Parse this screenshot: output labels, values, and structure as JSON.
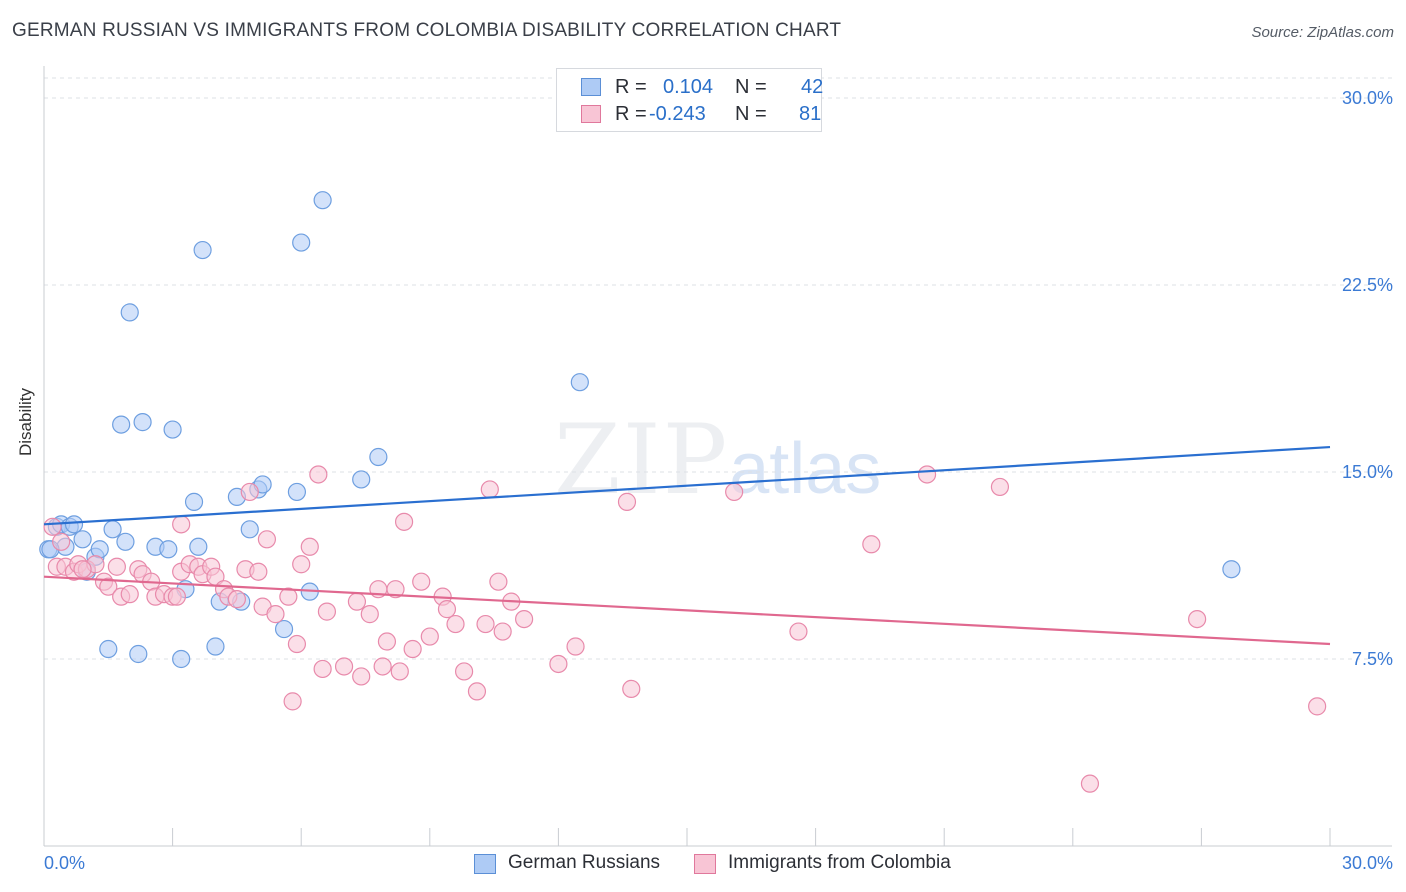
{
  "title": "GERMAN RUSSIAN VS IMMIGRANTS FROM COLOMBIA DISABILITY CORRELATION CHART",
  "source": "Source: ZipAtlas.com",
  "watermark": {
    "zip": "ZIP",
    "atlas": "atlas"
  },
  "legend": {
    "rows": [
      {
        "r_label": "R =",
        "r_value": "0.104",
        "n_label": "N =",
        "n_value": "42",
        "color": "#aecbf5",
        "border": "#5b8fd6"
      },
      {
        "r_label": "R =",
        "r_value": "-0.243",
        "n_label": "N =",
        "n_value": "81",
        "color": "#f8c5d5",
        "border": "#e0789c"
      }
    ]
  },
  "bottom_legend": [
    {
      "label": "German Russians",
      "color": "#aecbf5",
      "border": "#5b8fd6"
    },
    {
      "label": "Immigrants from Colombia",
      "color": "#f8c5d5",
      "border": "#e0789c"
    }
  ],
  "chart_data": {
    "type": "scatter",
    "title": "GERMAN RUSSIAN VS IMMIGRANTS FROM COLOMBIA DISABILITY CORRELATION CHART",
    "xlabel": "",
    "ylabel": "Disability",
    "xlim": [
      0,
      30
    ],
    "ylim": [
      0,
      30.8
    ],
    "x_tick_labels": [
      "0.0%",
      "30.0%"
    ],
    "y_ticks": [
      7.5,
      15.0,
      22.5,
      30.0
    ],
    "y_tick_labels": [
      "7.5%",
      "15.0%",
      "22.5%",
      "30.0%"
    ],
    "grid": true,
    "series": [
      {
        "name": "German Russians",
        "color": "#6e9fe0",
        "fill": "#aecbf5",
        "line_color": "#2a6fd0",
        "trend": {
          "x": [
            0,
            30
          ],
          "y": [
            12.9,
            16.0
          ]
        },
        "points": [
          [
            0.1,
            11.9
          ],
          [
            0.3,
            12.8
          ],
          [
            0.4,
            12.9
          ],
          [
            0.5,
            12.0
          ],
          [
            0.6,
            12.8
          ],
          [
            0.7,
            12.9
          ],
          [
            0.9,
            12.3
          ],
          [
            1.0,
            11.0
          ],
          [
            1.2,
            11.6
          ],
          [
            1.3,
            11.9
          ],
          [
            1.5,
            7.9
          ],
          [
            1.6,
            12.7
          ],
          [
            1.8,
            16.9
          ],
          [
            1.9,
            12.2
          ],
          [
            2.0,
            21.4
          ],
          [
            2.2,
            7.7
          ],
          [
            2.3,
            17.0
          ],
          [
            2.6,
            12.0
          ],
          [
            2.9,
            11.9
          ],
          [
            3.0,
            16.7
          ],
          [
            3.2,
            7.5
          ],
          [
            3.3,
            10.3
          ],
          [
            3.5,
            13.8
          ],
          [
            3.6,
            12.0
          ],
          [
            3.7,
            23.9
          ],
          [
            4.0,
            8.0
          ],
          [
            4.1,
            9.8
          ],
          [
            4.5,
            14.0
          ],
          [
            4.6,
            9.8
          ],
          [
            4.8,
            12.7
          ],
          [
            5.0,
            14.3
          ],
          [
            5.1,
            14.5
          ],
          [
            5.6,
            8.7
          ],
          [
            5.9,
            14.2
          ],
          [
            6.0,
            24.2
          ],
          [
            6.2,
            10.2
          ],
          [
            6.5,
            25.9
          ],
          [
            7.4,
            14.7
          ],
          [
            7.8,
            15.6
          ],
          [
            12.5,
            18.6
          ],
          [
            27.7,
            11.1
          ],
          [
            0.15,
            11.9
          ]
        ]
      },
      {
        "name": "Immigrants from Colombia",
        "color": "#e88aab",
        "fill": "#f8c5d5",
        "line_color": "#e0688f",
        "trend": {
          "x": [
            0,
            30
          ],
          "y": [
            10.8,
            8.1
          ]
        },
        "points": [
          [
            0.2,
            12.8
          ],
          [
            0.3,
            11.2
          ],
          [
            0.4,
            12.2
          ],
          [
            0.5,
            11.2
          ],
          [
            0.7,
            11.0
          ],
          [
            0.8,
            11.3
          ],
          [
            1.0,
            11.1
          ],
          [
            1.2,
            11.3
          ],
          [
            1.4,
            10.6
          ],
          [
            1.5,
            10.4
          ],
          [
            1.7,
            11.2
          ],
          [
            1.8,
            10.0
          ],
          [
            2.0,
            10.1
          ],
          [
            2.2,
            11.1
          ],
          [
            2.3,
            10.9
          ],
          [
            2.5,
            10.6
          ],
          [
            2.6,
            10.0
          ],
          [
            2.8,
            10.1
          ],
          [
            3.0,
            10.0
          ],
          [
            3.2,
            11.0
          ],
          [
            3.2,
            12.9
          ],
          [
            3.4,
            11.3
          ],
          [
            3.6,
            11.2
          ],
          [
            3.7,
            10.9
          ],
          [
            3.9,
            11.2
          ],
          [
            4.0,
            10.8
          ],
          [
            4.2,
            10.3
          ],
          [
            4.3,
            10.0
          ],
          [
            4.5,
            9.9
          ],
          [
            4.7,
            11.1
          ],
          [
            4.8,
            14.2
          ],
          [
            5.0,
            11.0
          ],
          [
            5.1,
            9.6
          ],
          [
            5.2,
            12.3
          ],
          [
            5.4,
            9.3
          ],
          [
            5.7,
            10.0
          ],
          [
            5.8,
            5.8
          ],
          [
            5.9,
            8.1
          ],
          [
            6.0,
            11.3
          ],
          [
            6.2,
            12.0
          ],
          [
            6.4,
            14.9
          ],
          [
            6.5,
            7.1
          ],
          [
            6.6,
            9.4
          ],
          [
            7.0,
            7.2
          ],
          [
            7.3,
            9.8
          ],
          [
            7.4,
            6.8
          ],
          [
            7.6,
            9.3
          ],
          [
            7.8,
            10.3
          ],
          [
            7.9,
            7.2
          ],
          [
            8.0,
            8.2
          ],
          [
            8.2,
            10.3
          ],
          [
            8.3,
            7.0
          ],
          [
            8.4,
            13.0
          ],
          [
            8.6,
            7.9
          ],
          [
            8.8,
            10.6
          ],
          [
            9.0,
            8.4
          ],
          [
            9.3,
            10.0
          ],
          [
            9.4,
            9.5
          ],
          [
            9.6,
            8.9
          ],
          [
            9.8,
            7.0
          ],
          [
            10.1,
            6.2
          ],
          [
            10.3,
            8.9
          ],
          [
            10.4,
            14.3
          ],
          [
            10.6,
            10.6
          ],
          [
            10.7,
            8.6
          ],
          [
            10.9,
            9.8
          ],
          [
            11.2,
            9.1
          ],
          [
            12.0,
            7.3
          ],
          [
            12.4,
            8.0
          ],
          [
            13.6,
            13.8
          ],
          [
            13.7,
            6.3
          ],
          [
            16.1,
            14.2
          ],
          [
            17.6,
            8.6
          ],
          [
            19.3,
            12.1
          ],
          [
            20.6,
            14.9
          ],
          [
            22.3,
            14.4
          ],
          [
            24.4,
            2.5
          ],
          [
            26.9,
            9.1
          ],
          [
            29.7,
            5.6
          ],
          [
            0.9,
            11.1
          ],
          [
            3.1,
            10.0
          ]
        ]
      }
    ]
  }
}
